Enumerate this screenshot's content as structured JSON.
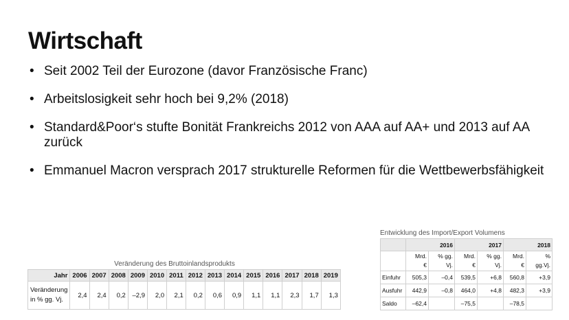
{
  "slide": {
    "title": "Wirtschaft",
    "bullets": [
      "Seit 2002 Teil der Eurozone (davor Französische Franc)",
      "Arbeitslosigkeit sehr hoch bei 9,2% (2018)",
      "Standard&Poor‘s stufte Bonität Frankreichs 2012 von AAA auf AA+ und 2013 auf AA zurück",
      "Emmanuel Macron versprach 2017 strukturelle Reformen für die Wettbewerbsfähigkeit"
    ],
    "bullet_symbol": "•"
  },
  "gdp_table": {
    "caption": "Veränderung des Bruttoinlandsprodukts",
    "header_label": "Jahr",
    "years": [
      "2006",
      "2007",
      "2008",
      "2009",
      "2010",
      "2011",
      "2012",
      "2013",
      "2014",
      "2015",
      "2016",
      "2017",
      "2018",
      "2019"
    ],
    "row_label_line1": "Veränderung",
    "row_label_line2": "in % gg. Vj.",
    "values": [
      "2,4",
      "2,4",
      "0,2",
      "–2,9",
      "2,0",
      "2,1",
      "0,2",
      "0,6",
      "0,9",
      "1,1",
      "1,1",
      "2,3",
      "1,7",
      "1,3"
    ]
  },
  "trade_table": {
    "caption": "Entwicklung des  Import/Export Volumens",
    "years": [
      "2016",
      "2017",
      "2018"
    ],
    "unit_labels": [
      {
        "line1": "Mrd.",
        "line2": "€"
      },
      {
        "line1": "% gg.",
        "line2": "Vj."
      },
      {
        "line1": "Mrd.",
        "line2": "€"
      },
      {
        "line1": "% gg.",
        "line2": "Vj."
      },
      {
        "line1": "Mrd.",
        "line2": "€"
      },
      {
        "line1": "%",
        "line2": "gg.Vj."
      }
    ],
    "rows": [
      {
        "label": "Einfuhr",
        "cells": [
          "505,3",
          "–0,4",
          "539,5",
          "+6,8",
          "560,8",
          "+3,9"
        ]
      },
      {
        "label": "Ausfuhr",
        "cells": [
          "442,9",
          "–0,8",
          "464,0",
          "+4,8",
          "482,3",
          "+3,9"
        ]
      },
      {
        "label": "Saldo",
        "cells": [
          "–62,4",
          "",
          "–75,5",
          "",
          "–78,5",
          ""
        ]
      }
    ]
  }
}
